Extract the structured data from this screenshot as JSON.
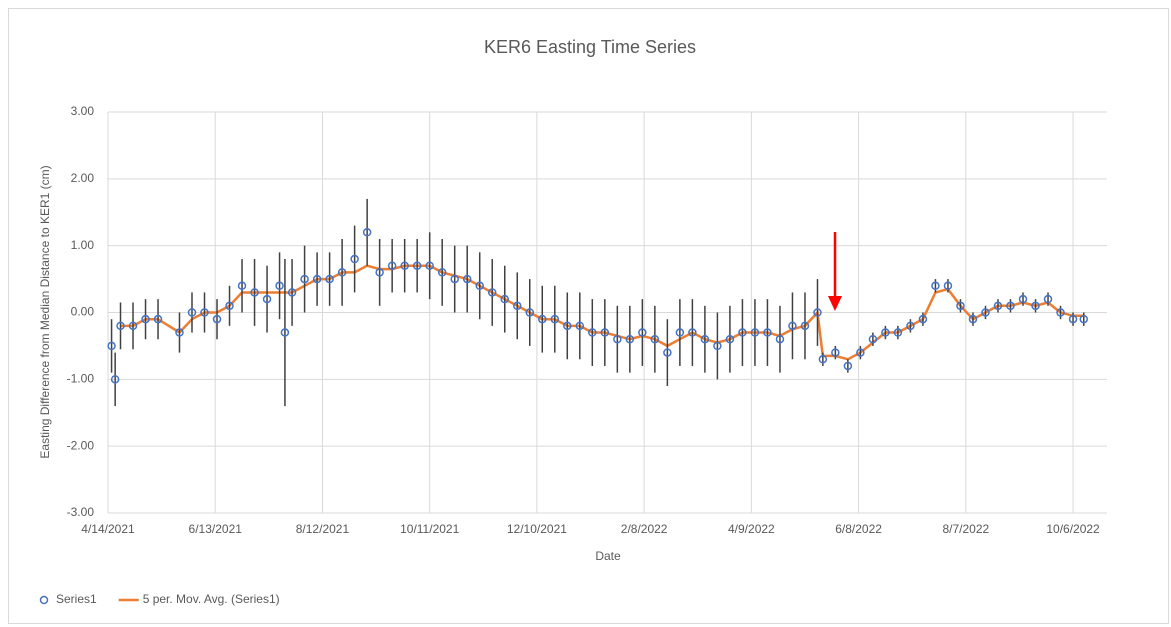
{
  "chart_data": {
    "type": "scatter",
    "title": "KER6 Easting Time Series",
    "xlabel": "Date",
    "ylabel": "Easting Difference from Median Distance to KER1 (cm)",
    "xlim": [
      "4/14/2021",
      "10/25/2022"
    ],
    "xticks": [
      "4/14/2021",
      "6/13/2021",
      "8/12/2021",
      "10/11/2021",
      "12/10/2021",
      "2/8/2022",
      "4/9/2022",
      "6/8/2022",
      "8/7/2022",
      "10/6/2022"
    ],
    "ylim": [
      -3,
      3
    ],
    "yticks": [
      {
        "value": -3,
        "label": "-3.00"
      },
      {
        "value": -2,
        "label": "-2.00"
      },
      {
        "value": -1,
        "label": "-1.00"
      },
      {
        "value": 0,
        "label": "0.00"
      },
      {
        "value": 1,
        "label": "1.00"
      },
      {
        "value": 2,
        "label": "2.00"
      },
      {
        "value": 3,
        "label": "3.00"
      }
    ],
    "grid": true,
    "legend": "bottom",
    "x": [
      "4/16/2021",
      "4/18/2021",
      "4/21/2021",
      "4/28/2021",
      "5/5/2021",
      "5/12/2021",
      "5/24/2021",
      "5/31/2021",
      "6/7/2021",
      "6/14/2021",
      "6/21/2021",
      "6/28/2021",
      "7/5/2021",
      "7/12/2021",
      "7/19/2021",
      "7/22/2021",
      "7/26/2021",
      "8/2/2021",
      "8/9/2021",
      "8/16/2021",
      "8/23/2021",
      "8/30/2021",
      "9/6/2021",
      "9/13/2021",
      "9/20/2021",
      "9/27/2021",
      "10/4/2021",
      "10/11/2021",
      "10/18/2021",
      "10/25/2021",
      "11/1/2021",
      "11/8/2021",
      "11/15/2021",
      "11/22/2021",
      "11/29/2021",
      "12/6/2021",
      "12/13/2021",
      "12/20/2021",
      "12/27/2021",
      "1/3/2022",
      "1/10/2022",
      "1/17/2022",
      "1/24/2022",
      "1/31/2022",
      "2/7/2022",
      "2/14/2022",
      "2/21/2022",
      "2/28/2022",
      "3/7/2022",
      "3/14/2022",
      "3/21/2022",
      "3/28/2022",
      "4/4/2022",
      "4/11/2022",
      "4/18/2022",
      "4/25/2022",
      "5/2/2022",
      "5/9/2022",
      "5/16/2022",
      "5/19/2022",
      "5/26/2022",
      "6/2/2022",
      "6/9/2022",
      "6/16/2022",
      "6/23/2022",
      "6/30/2022",
      "7/7/2022",
      "7/14/2022",
      "7/21/2022",
      "7/28/2022",
      "8/4/2022",
      "8/11/2022",
      "8/18/2022",
      "8/25/2022",
      "9/1/2022",
      "9/8/2022",
      "9/15/2022",
      "9/22/2022",
      "9/29/2022",
      "10/6/2022",
      "10/12/2022"
    ],
    "series": [
      {
        "name": "Series1",
        "color": "#4472c4",
        "error_color": "#404040",
        "values": [
          -0.5,
          -1.0,
          -0.2,
          -0.2,
          -0.1,
          -0.1,
          -0.3,
          0.0,
          0.0,
          -0.1,
          0.1,
          0.4,
          0.3,
          0.2,
          0.4,
          -0.3,
          0.3,
          0.5,
          0.5,
          0.5,
          0.6,
          0.8,
          1.2,
          0.6,
          0.7,
          0.7,
          0.7,
          0.7,
          0.6,
          0.5,
          0.5,
          0.4,
          0.3,
          0.2,
          0.1,
          0.0,
          -0.1,
          -0.1,
          -0.2,
          -0.2,
          -0.3,
          -0.3,
          -0.4,
          -0.4,
          -0.3,
          -0.4,
          -0.6,
          -0.3,
          -0.3,
          -0.4,
          -0.5,
          -0.4,
          -0.3,
          -0.3,
          -0.3,
          -0.4,
          -0.2,
          -0.2,
          0.0,
          -0.7,
          -0.6,
          -0.8,
          -0.6,
          -0.4,
          -0.3,
          -0.3,
          -0.2,
          -0.1,
          0.4,
          0.4,
          0.1,
          -0.1,
          0.0,
          0.1,
          0.1,
          0.2,
          0.1,
          0.2,
          0.0,
          -0.1,
          -0.1
        ],
        "errors": [
          0.4,
          0.4,
          0.35,
          0.35,
          0.3,
          0.3,
          0.3,
          0.3,
          0.3,
          0.3,
          0.3,
          0.4,
          0.5,
          0.5,
          0.5,
          1.1,
          0.5,
          0.5,
          0.4,
          0.4,
          0.5,
          0.5,
          0.5,
          0.5,
          0.4,
          0.4,
          0.4,
          0.5,
          0.5,
          0.5,
          0.5,
          0.5,
          0.5,
          0.5,
          0.5,
          0.5,
          0.5,
          0.5,
          0.5,
          0.5,
          0.5,
          0.5,
          0.5,
          0.5,
          0.5,
          0.5,
          0.5,
          0.5,
          0.5,
          0.5,
          0.5,
          0.5,
          0.5,
          0.5,
          0.5,
          0.5,
          0.5,
          0.5,
          0.5,
          0.1,
          0.1,
          0.1,
          0.1,
          0.1,
          0.1,
          0.1,
          0.1,
          0.1,
          0.1,
          0.1,
          0.1,
          0.1,
          0.1,
          0.1,
          0.1,
          0.1,
          0.1,
          0.1,
          0.1,
          0.1,
          0.1
        ]
      },
      {
        "name": "5 per. Mov. Avg. (Series1)",
        "color": "#ed7d31",
        "kind": "line",
        "values": [
          null,
          null,
          -0.2,
          -0.2,
          -0.1,
          -0.1,
          -0.3,
          -0.1,
          0.0,
          0.0,
          0.1,
          0.3,
          0.3,
          0.3,
          0.3,
          0.3,
          0.3,
          0.4,
          0.5,
          0.5,
          0.6,
          0.6,
          0.7,
          0.65,
          0.65,
          0.7,
          0.7,
          0.7,
          0.6,
          0.55,
          0.5,
          0.4,
          0.3,
          0.2,
          0.1,
          0.0,
          -0.1,
          -0.1,
          -0.2,
          -0.2,
          -0.3,
          -0.3,
          -0.35,
          -0.4,
          -0.35,
          -0.4,
          -0.5,
          -0.4,
          -0.3,
          -0.4,
          -0.45,
          -0.4,
          -0.3,
          -0.3,
          -0.3,
          -0.35,
          -0.25,
          -0.2,
          0.0,
          -0.65,
          -0.65,
          -0.7,
          -0.6,
          -0.45,
          -0.3,
          -0.3,
          -0.2,
          -0.1,
          0.3,
          0.35,
          0.1,
          -0.1,
          0.0,
          0.1,
          0.1,
          0.15,
          0.1,
          0.15,
          0.0,
          -0.05,
          -0.05
        ]
      }
    ]
  }
}
